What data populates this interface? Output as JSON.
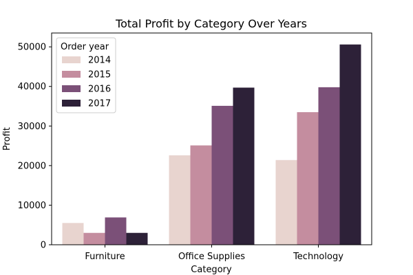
{
  "chart_data": {
    "type": "bar",
    "title": "Total Profit by Category Over Years",
    "xlabel": "Category",
    "ylabel": "Profit",
    "categories": [
      "Furniture",
      "Office Supplies",
      "Technology"
    ],
    "series": [
      {
        "name": "2014",
        "color": "#e8d4cf",
        "values": [
          5500,
          22600,
          21400
        ]
      },
      {
        "name": "2015",
        "color": "#c48d9f",
        "values": [
          3000,
          25100,
          33500
        ]
      },
      {
        "name": "2016",
        "color": "#7b5078",
        "values": [
          6900,
          35100,
          39800
        ]
      },
      {
        "name": "2017",
        "color": "#2d2138",
        "values": [
          3000,
          39700,
          50600
        ]
      }
    ],
    "ylim": [
      0,
      53500
    ],
    "yticks": [
      0,
      10000,
      20000,
      30000,
      40000,
      50000
    ],
    "ytick_labels": [
      "0",
      "10000",
      "20000",
      "30000",
      "40000",
      "50000"
    ],
    "grid": false,
    "legend": {
      "title": "Order year",
      "placement": "top-left"
    }
  }
}
